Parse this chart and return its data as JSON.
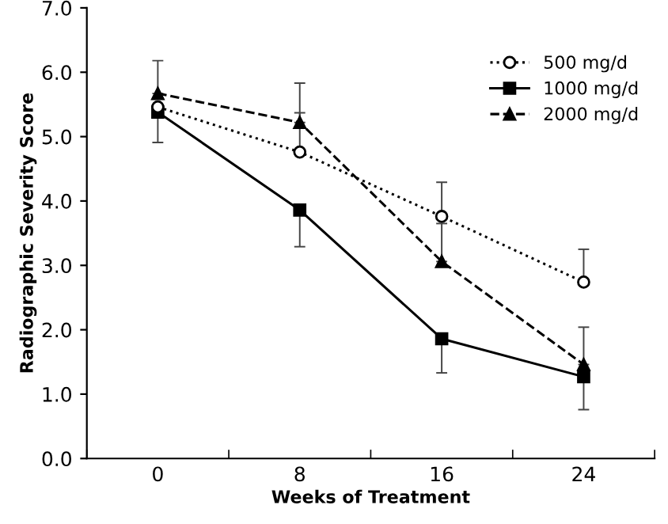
{
  "chart_data": {
    "type": "line",
    "xlabel": "Weeks of Treatment",
    "ylabel": "Radiographic Severity Score",
    "categories": [
      "0",
      "8",
      "16",
      "24"
    ],
    "series": [
      {
        "name": "500 mg/d",
        "color": "#000000",
        "marker": "circle",
        "line_style": "dotted",
        "values": [
          5.46,
          4.76,
          3.76,
          2.74
        ],
        "errors": [
          null,
          [
            4.76,
            5.37
          ],
          [
            3.76,
            4.29
          ],
          [
            2.74,
            3.25
          ]
        ]
      },
      {
        "name": "1000 mg/d",
        "color": "#000000",
        "marker": "square",
        "line_style": "solid",
        "values": [
          5.38,
          3.86,
          1.86,
          1.27
        ],
        "errors": [
          [
            4.91,
            5.38
          ],
          [
            3.29,
            3.86
          ],
          [
            1.33,
            1.86
          ],
          [
            0.76,
            1.27
          ]
        ]
      },
      {
        "name": "2000 mg/d",
        "color": "#000000",
        "marker": "triangle",
        "line_style": "dashed",
        "values": [
          5.67,
          5.22,
          3.06,
          1.46
        ],
        "errors": [
          [
            5.67,
            6.18
          ],
          [
            5.22,
            5.83
          ],
          [
            3.06,
            3.65
          ],
          [
            1.46,
            2.04
          ]
        ]
      }
    ],
    "ylim": [
      0,
      7
    ],
    "yticks": [
      {
        "value": 0,
        "label": "0.0"
      },
      {
        "value": 1,
        "label": "1.0"
      },
      {
        "value": 2,
        "label": "2.0"
      },
      {
        "value": 3,
        "label": "3.0"
      },
      {
        "value": 4,
        "label": "4.0"
      },
      {
        "value": 5,
        "label": "5.0"
      },
      {
        "value": 6,
        "label": "6.0"
      },
      {
        "value": 7,
        "label": "7.0"
      }
    ],
    "grid": false,
    "legend": "top right"
  }
}
